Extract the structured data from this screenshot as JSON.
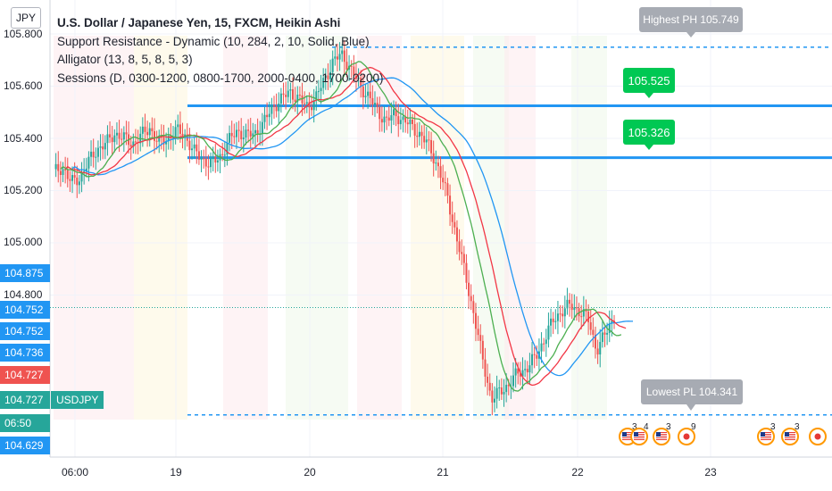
{
  "header": {
    "currency_badge": "JPY",
    "title": "U.S. Dollar / Japanese Yen, 15, FXCM, Heikin Ashi",
    "indicators": [
      "Support Resistance - Dynamic (10, 284, 2, 10, Solid, Blue)",
      "Alligator (13, 8, 5, 8, 5, 3)",
      "Sessions (D, 0300-1200, 0800-1700, 2000-0400, 1700-0200)"
    ]
  },
  "colors": {
    "up": "#26a69a",
    "down": "#ef5350",
    "sr_line": "#2196f3",
    "jaw": "#2196f3",
    "teeth": "#f23645",
    "lips": "#4caf50",
    "callout_green": "#00c853",
    "callout_gray": "#a7abb3",
    "tag_blue": "#2196f3",
    "tag_red": "#ef5350"
  },
  "price_axis": {
    "ticks": [
      "105.800",
      "105.600",
      "105.400",
      "105.200",
      "105.000",
      "104.800"
    ],
    "tags": [
      {
        "text": "104.875",
        "color": "#2196f3"
      },
      {
        "text": "104.752",
        "color": "#2196f3"
      },
      {
        "text": "104.752",
        "color": "#2196f3"
      },
      {
        "text": "104.736",
        "color": "#2196f3"
      },
      {
        "text": "104.727",
        "color": "#ef5350"
      },
      {
        "text": "104.727",
        "color": "#26a69a"
      },
      {
        "text": "06:50",
        "color": "#26a69a"
      },
      {
        "text": "104.629",
        "color": "#2196f3"
      }
    ],
    "symbol_tag": "USDJPY"
  },
  "time_axis": {
    "ticks": [
      "06:00",
      "19",
      "20",
      "21",
      "22",
      "23"
    ]
  },
  "annotations": {
    "highest": "Highest PH 105.749",
    "resistance_1": "105.525",
    "resistance_2": "105.326",
    "lowest": "Lowest PL 104.341"
  },
  "events": [
    {
      "label": "3",
      "flag": "us"
    },
    {
      "label": "4",
      "flag": "us"
    },
    {
      "label": "3",
      "flag": "us"
    },
    {
      "label": "9",
      "flag": "jp"
    },
    {
      "label": "3",
      "flag": "us"
    },
    {
      "label": "3",
      "flag": "us"
    },
    {
      "label": "",
      "flag": "jp"
    }
  ],
  "chart_data": {
    "type": "candlestick",
    "ylim": [
      104.3,
      105.85
    ],
    "close": [
      105.27,
      105.29,
      105.23,
      105.25,
      105.31,
      105.36,
      105.38,
      105.42,
      105.4,
      105.38,
      105.41,
      105.44,
      105.38,
      105.4,
      105.43,
      105.41,
      105.35,
      105.32,
      105.3,
      105.33,
      105.39,
      105.43,
      105.41,
      105.42,
      105.46,
      105.52,
      105.55,
      105.58,
      105.55,
      105.52,
      105.56,
      105.63,
      105.7,
      105.72,
      105.66,
      105.6,
      105.56,
      105.5,
      105.47,
      105.49,
      105.47,
      105.44,
      105.41,
      105.36,
      105.28,
      105.17,
      105.02,
      104.88,
      104.72,
      104.55,
      104.4,
      104.43,
      104.46,
      104.5,
      104.52,
      104.56,
      104.63,
      104.7,
      104.74,
      104.76,
      104.74,
      104.71,
      104.59,
      104.65,
      104.72
    ],
    "levels": {
      "highest_ph": 105.749,
      "resistance_1": 105.525,
      "resistance_2": 105.326,
      "lowest_pl": 104.341,
      "last_price": 104.752
    }
  }
}
